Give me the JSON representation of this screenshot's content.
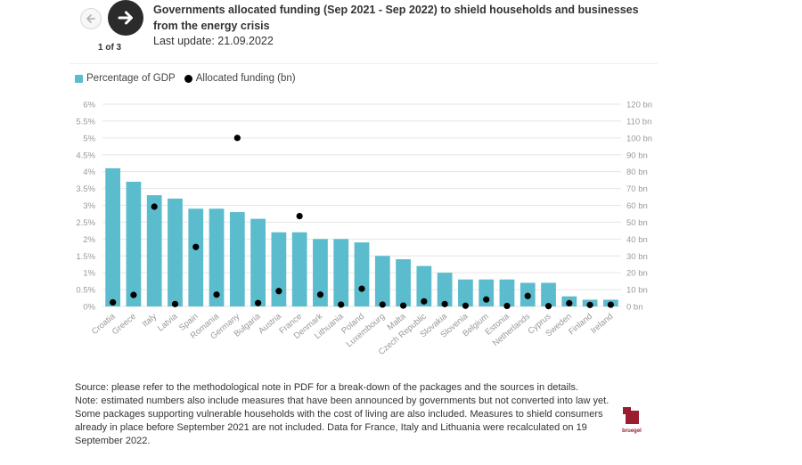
{
  "nav": {
    "prev_icon": "arrow-left-icon",
    "next_icon": "arrow-right-icon",
    "page_indicator": "1 of 3"
  },
  "header": {
    "title": "Governments allocated funding (Sep 2021 - Sep 2022) to shield households and businesses from the energy crisis",
    "last_update": "Last update: 21.09.2022"
  },
  "legend": {
    "items": [
      {
        "label": "Percentage of GDP",
        "color": "#5bbccd"
      },
      {
        "label": "Allocated funding (bn)",
        "color": "#000000"
      }
    ]
  },
  "chart_data": {
    "type": "bar",
    "categories": [
      "Croatia",
      "Greece",
      "Italy",
      "Latvia",
      "Spain",
      "Romania",
      "Germany",
      "Bulgaria",
      "Austria",
      "France",
      "Denmark",
      "Lithuania",
      "Poland",
      "Luxembourg",
      "Malta",
      "Czech Republic",
      "Slovakia",
      "Slovenia",
      "Belgium",
      "Estonia",
      "Netherlands",
      "Cyprus",
      "Sweden",
      "Finland",
      "Ireland"
    ],
    "series": [
      {
        "name": "Percentage of GDP",
        "type": "bar",
        "axis": "left",
        "color": "#5bbccd",
        "values": [
          4.1,
          3.7,
          3.3,
          3.2,
          2.9,
          2.9,
          2.8,
          2.6,
          2.2,
          2.2,
          2.0,
          2.0,
          1.9,
          1.5,
          1.4,
          1.2,
          1.0,
          0.8,
          0.8,
          0.8,
          0.7,
          0.7,
          0.3,
          0.2,
          0.2
        ]
      },
      {
        "name": "Allocated funding (bn)",
        "type": "scatter",
        "axis": "right",
        "color": "#000000",
        "values": [
          2.4,
          6.8,
          59.2,
          1.4,
          35.3,
          7.0,
          100.0,
          2.0,
          9.1,
          53.6,
          7.0,
          1.1,
          10.5,
          1.1,
          0.5,
          3.0,
          1.4,
          0.4,
          4.1,
          0.3,
          6.2,
          0.2,
          1.9,
          0.9,
          1.0
        ]
      }
    ],
    "y_left": {
      "min": 0,
      "max": 6,
      "ticks": [
        "0%",
        "0.5%",
        "1%",
        "1.5%",
        "2%",
        "2.5%",
        "3%",
        "3.5%",
        "4%",
        "4.5%",
        "5%",
        "5.5%",
        "6%"
      ]
    },
    "y_right": {
      "min": 0,
      "max": 120,
      "ticks": [
        "0 bn",
        "10 bn",
        "20 bn",
        "30 bn",
        "40 bn",
        "50 bn",
        "60 bn",
        "70 bn",
        "80 bn",
        "90 bn",
        "100 bn",
        "110 bn",
        "120 bn"
      ]
    },
    "grid": true,
    "legend_position": "top-left"
  },
  "footnotes": {
    "source": "Source: please refer to the methodological note in PDF for a break-down of the packages and the sources in details.",
    "note": "Note: estimated numbers also include measures that have been announced by governments but not converted into law yet. Some packages supporting vulnerable households with the cost of living are also included. Measures to shield consumers already in place before September 2021 are not included. Data for France, Italy and Lithuania were recalculated on 19 September 2022."
  },
  "logo": {
    "icon": "bruegel-logo-icon",
    "text": "bruegel",
    "color": "#9b1b30"
  }
}
